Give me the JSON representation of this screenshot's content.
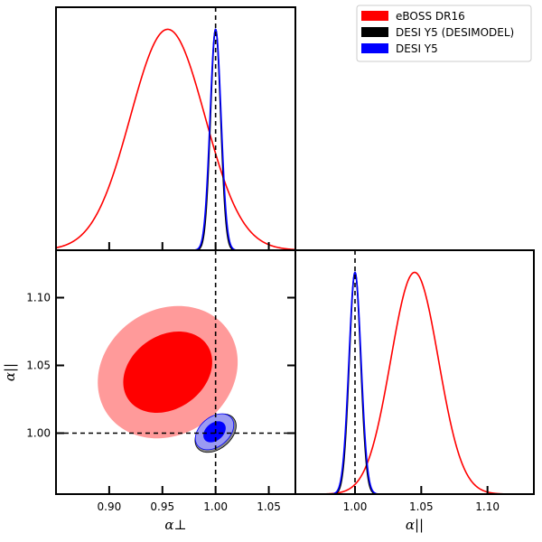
{
  "colors": {
    "eboss": "#ff0000",
    "eboss_outer_fill": "#ff9a9a",
    "desimodel": "#000000",
    "desimodel_outer_fill": "#888888",
    "desimodel_inner_fill": "#3a3a3a",
    "desi_y5": "#0000ff",
    "desi_y5_outer_fill": "#9a9af2",
    "desi_y5_inner_fill": "#0000ff",
    "fiducial_line": "#000000"
  },
  "legend": {
    "placement": "top-right",
    "entries": [
      {
        "label": "eBOSS DR16",
        "color": "#ff0000"
      },
      {
        "label": "DESI Y5 (DESIMODEL)",
        "color": "#000000"
      },
      {
        "label": "DESI Y5",
        "color": "#0000ff"
      }
    ]
  },
  "axes": {
    "x_perp_label": "α⊥",
    "y_par_label": "α||",
    "x_par_label": "α||"
  },
  "chart_data": [
    {
      "panel": "alpha_perp_marginal",
      "type": "line",
      "xlim": [
        0.85,
        1.075
      ],
      "ylim": [
        0,
        1.1
      ],
      "x_ticks": [
        0.9,
        0.95,
        1.0,
        1.05
      ],
      "reference_line_x": 1.0,
      "series": [
        {
          "name": "eBOSS DR16",
          "mean": 0.955,
          "sigma": 0.035,
          "peak": 1.0
        },
        {
          "name": "DESI Y5 (DESIMODEL)",
          "mean": 1.0,
          "sigma": 0.0048,
          "peak": 1.0
        },
        {
          "name": "DESI Y5",
          "mean": 1.0,
          "sigma": 0.0052,
          "peak": 1.0
        }
      ]
    },
    {
      "panel": "alpha_perp_vs_alpha_par",
      "type": "scatter",
      "xlabel": "α⊥",
      "ylabel": "α||",
      "xlim": [
        0.85,
        1.075
      ],
      "ylim": [
        0.955,
        1.135
      ],
      "x_ticks": [
        0.9,
        0.95,
        1.0,
        1.05
      ],
      "y_ticks": [
        1.0,
        1.05,
        1.1
      ],
      "y_tick_labels": [
        "1.00",
        "1.05",
        "1.10"
      ],
      "reference_lines": {
        "x": 1.0,
        "y": 1.0
      },
      "contours": [
        {
          "name": "eBOSS DR16",
          "level": "2σ",
          "center": [
            0.955,
            1.045
          ],
          "rx": 0.069,
          "ry": 0.046,
          "rotation_deg": -35
        },
        {
          "name": "eBOSS DR16",
          "level": "1σ",
          "center": [
            0.955,
            1.045
          ],
          "rx": 0.045,
          "ry": 0.027,
          "rotation_deg": -35
        },
        {
          "name": "DESI Y5 (DESIMODEL)",
          "level": "2σ",
          "center": [
            1.0,
            1.0
          ],
          "rx": 0.022,
          "ry": 0.0115,
          "rotation_deg": -40
        },
        {
          "name": "DESI Y5 (DESIMODEL)",
          "level": "1σ",
          "center": [
            1.0,
            1.0
          ],
          "rx": 0.0125,
          "ry": 0.0068,
          "rotation_deg": -40
        },
        {
          "name": "DESI Y5",
          "level": "2σ",
          "center": [
            0.999,
            1.001
          ],
          "rx": 0.0205,
          "ry": 0.0108,
          "rotation_deg": -40
        },
        {
          "name": "DESI Y5",
          "level": "1σ",
          "center": [
            0.999,
            1.001
          ],
          "rx": 0.0115,
          "ry": 0.0062,
          "rotation_deg": -40
        }
      ]
    },
    {
      "panel": "alpha_par_marginal",
      "type": "line",
      "xlabel": "α||",
      "xlim": [
        0.955,
        1.135
      ],
      "ylim": [
        0,
        1.1
      ],
      "x_ticks": [
        1.0,
        1.05,
        1.1
      ],
      "x_tick_labels": [
        "1.00",
        "1.05",
        "1.10"
      ],
      "reference_line_x": 1.0,
      "series": [
        {
          "name": "eBOSS DR16",
          "mean": 1.045,
          "sigma": 0.018,
          "peak": 1.0
        },
        {
          "name": "DESI Y5 (DESIMODEL)",
          "mean": 1.0,
          "sigma": 0.0043,
          "peak": 1.0
        },
        {
          "name": "DESI Y5",
          "mean": 1.0,
          "sigma": 0.0046,
          "peak": 1.0
        }
      ]
    }
  ]
}
